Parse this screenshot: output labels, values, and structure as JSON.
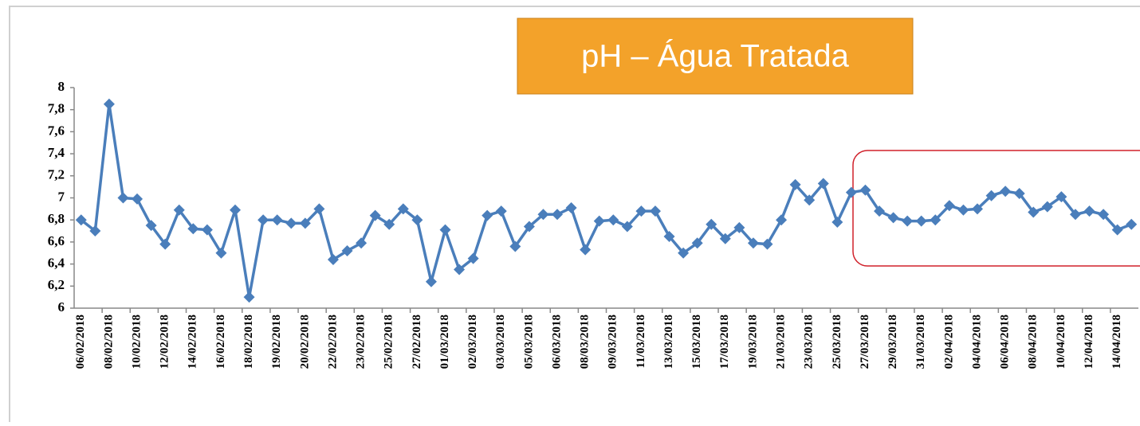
{
  "chart_data": {
    "type": "line",
    "title": "pH – Água Tratada",
    "color": "#4a7ebb",
    "categories": [
      "06/02/2018",
      null,
      "08/02/2018",
      null,
      "10/02/2018",
      null,
      "12/02/2018",
      null,
      "14/02/2018",
      null,
      "16/02/2018",
      null,
      "18/02/2018",
      null,
      "19/02/2018",
      null,
      "20/02/2018",
      null,
      "22/02/2018",
      null,
      "23/02/2018",
      null,
      "25/02/2018",
      null,
      "27/02/2018",
      null,
      "01/03/2018",
      null,
      "02/03/2018",
      null,
      "03/03/2018",
      null,
      "05/03/2018",
      null,
      "06/03/2018",
      null,
      "08/03/2018",
      null,
      "09/03/2018",
      null,
      "11/03/2018",
      null,
      "13/03/2018",
      null,
      "15/03/2018",
      null,
      "17/03/2018",
      null,
      "19/03/2018",
      null,
      "21/03/2018",
      null,
      "23/03/2018",
      null,
      "25/03/2018",
      null,
      "27/03/2018",
      null,
      "29/03/2018",
      null,
      "31/03/2018",
      null,
      "02/04/2018",
      null,
      "04/04/2018",
      null,
      "06/04/2018",
      null,
      "08/04/2018",
      null,
      "10/04/2018",
      null,
      "12/04/2018",
      null,
      "14/04/2018",
      null
    ],
    "values": [
      6.8,
      6.7,
      7.85,
      7.0,
      6.99,
      6.75,
      6.58,
      6.89,
      6.72,
      6.71,
      6.5,
      6.89,
      6.1,
      6.8,
      6.8,
      6.77,
      6.77,
      6.9,
      6.44,
      6.52,
      6.59,
      6.84,
      6.76,
      6.9,
      6.8,
      6.24,
      6.71,
      6.35,
      6.45,
      6.84,
      6.88,
      6.56,
      6.74,
      6.85,
      6.85,
      6.91,
      6.53,
      6.79,
      6.8,
      6.74,
      6.88,
      6.88,
      6.65,
      6.5,
      6.59,
      6.76,
      6.63,
      6.73,
      6.59,
      6.58,
      6.8,
      7.12,
      6.98,
      7.13,
      6.78,
      7.05,
      7.07,
      6.88,
      6.82,
      6.79,
      6.79,
      6.8,
      6.93,
      6.89,
      6.9,
      7.02,
      7.06,
      7.04,
      6.87,
      6.92,
      7.01,
      6.85,
      6.88,
      6.85,
      6.71,
      6.76
    ],
    "ylim": [
      6,
      8
    ],
    "yticks": [
      6,
      {
        "value": 6.2,
        "label": "6,2"
      },
      {
        "value": 6.4,
        "label": "6,4"
      },
      {
        "value": 6.6,
        "label": "6,6"
      },
      {
        "value": 6.8,
        "label": "6,8"
      },
      7,
      {
        "value": 7.2,
        "label": "7,2"
      },
      {
        "value": 7.4,
        "label": "7,4"
      },
      {
        "value": 7.6,
        "label": "7,6"
      },
      {
        "value": 7.8,
        "label": "7,8"
      },
      8
    ],
    "grid": false
  }
}
